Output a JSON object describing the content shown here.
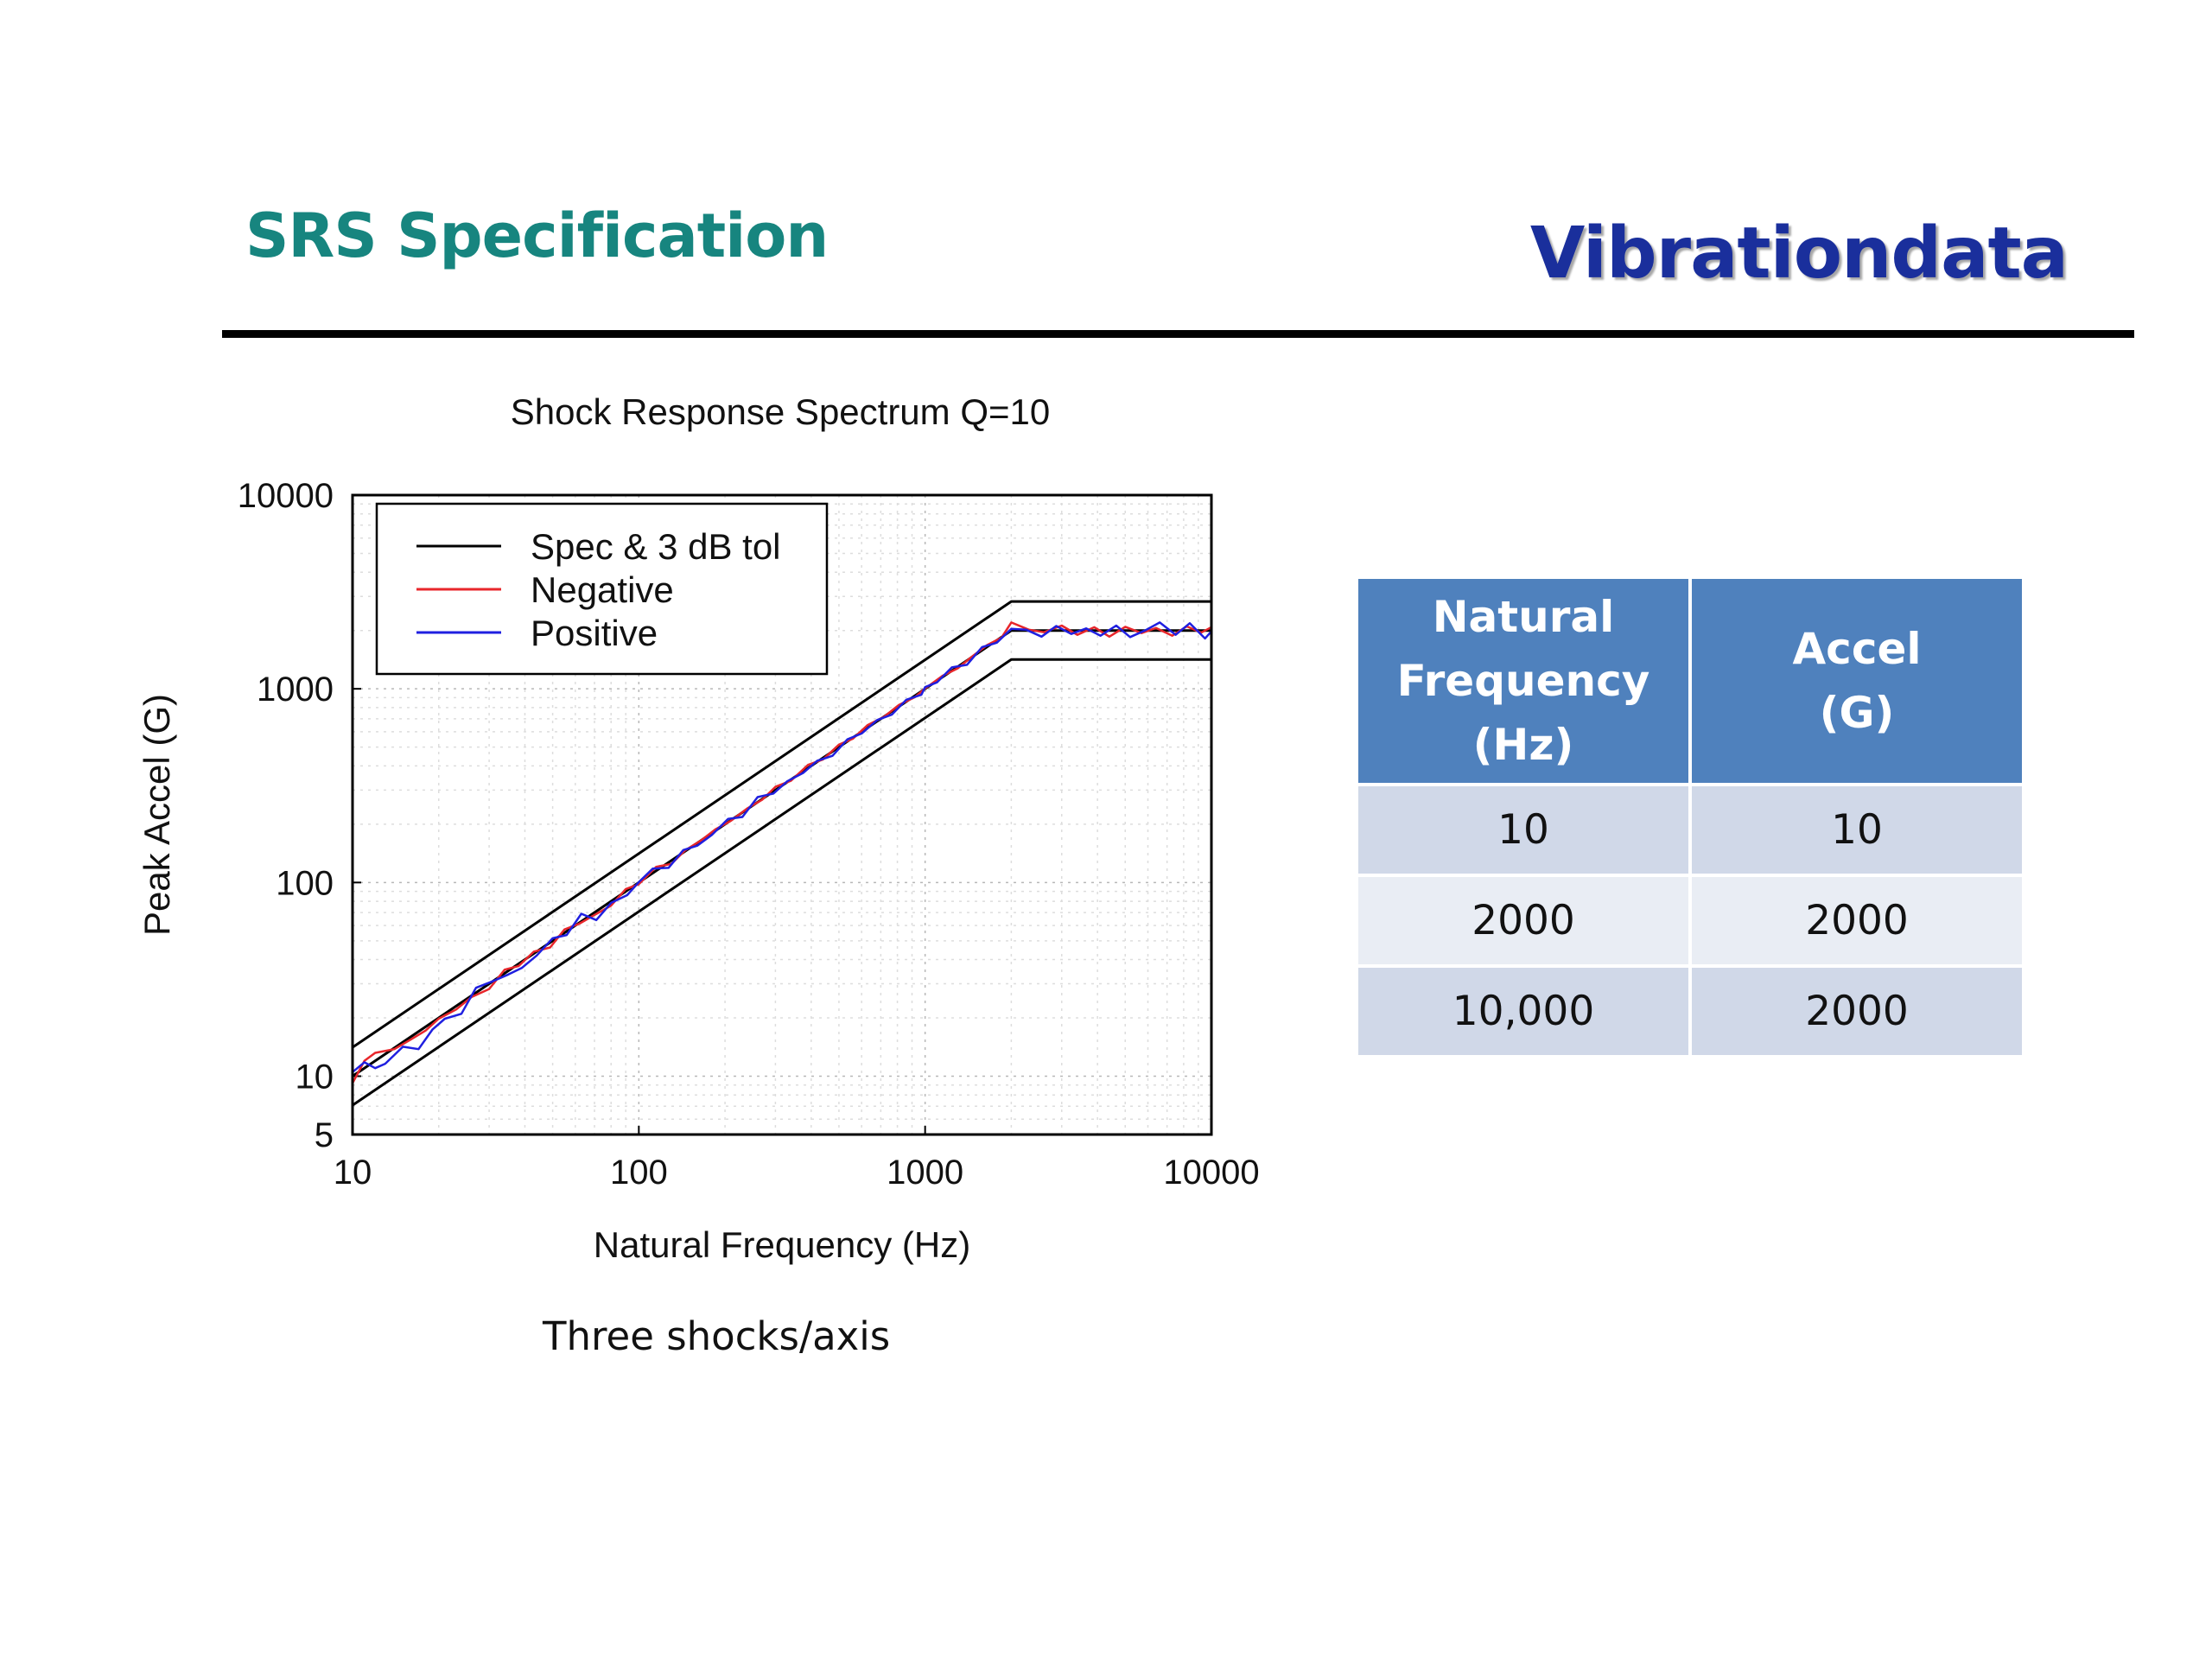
{
  "slide": {
    "title": "SRS Specification",
    "brand": "Vibrationdata",
    "caption": "Three shocks/axis"
  },
  "table": {
    "headers": [
      [
        "Natural",
        "Frequency",
        "(Hz)"
      ],
      [
        "Accel",
        "(G)"
      ]
    ],
    "rows": [
      [
        "10",
        "10"
      ],
      [
        "2000",
        "2000"
      ],
      [
        "10,000",
        "2000"
      ]
    ]
  },
  "chart_data": {
    "type": "line",
    "title": "Shock Response Spectrum Q=10",
    "xlabel": "Natural Frequency (Hz)",
    "ylabel": "Peak Accel (G)",
    "xscale": "log",
    "yscale": "log",
    "xlim": [
      10,
      10000
    ],
    "ylim": [
      5,
      10000
    ],
    "xticks": [
      10,
      100,
      1000,
      10000
    ],
    "xtick_labels": [
      "10",
      "100",
      "1000",
      "10000"
    ],
    "yticks": [
      5,
      10,
      100,
      1000,
      10000
    ],
    "ytick_labels": [
      "5",
      "10",
      "100",
      "1000",
      "10000"
    ],
    "grid": true,
    "legend": "top-left",
    "colors": {
      "spec": "#000000",
      "negative": "#e8262b",
      "positive": "#1f1fe0"
    },
    "series": [
      {
        "name": "Spec & 3 dB tol",
        "key": "spec",
        "x": [
          10,
          2000,
          10000
        ],
        "y": [
          10,
          2000,
          2000
        ]
      },
      {
        "key": "spec",
        "x": [
          10,
          2000,
          10000
        ],
        "y": [
          14.1,
          2825,
          2825
        ]
      },
      {
        "key": "spec",
        "x": [
          10,
          2000,
          10000
        ],
        "y": [
          7.08,
          1416,
          1416
        ]
      },
      {
        "name": "Negative",
        "key": "negative",
        "x": [
          10,
          11,
          12,
          14,
          16,
          18,
          20,
          23,
          26,
          30,
          34,
          38,
          43,
          49,
          55,
          62,
          70,
          80,
          90,
          100,
          115,
          130,
          145,
          165,
          185,
          210,
          240,
          270,
          300,
          340,
          390,
          440,
          500,
          560,
          630,
          720,
          810,
          920,
          1000,
          1150,
          1300,
          1450,
          1650,
          1850,
          2000,
          2300,
          2600,
          3000,
          3400,
          3900,
          4400,
          5000,
          5700,
          6400,
          7300,
          8200,
          9200,
          10000
        ],
        "y": [
          9.2,
          12.0,
          13.2,
          13.8,
          15.5,
          17.2,
          19.8,
          22.1,
          25.6,
          28.2,
          35.5,
          37.0,
          44.0,
          46.2,
          57.2,
          61.3,
          68.0,
          76.0,
          92.5,
          98.0,
          120.5,
          124.8,
          146.5,
          165.0,
          188.0,
          208.5,
          242.0,
          268.0,
          312.0,
          335.0,
          405.0,
          432.0,
          515.0,
          553.0,
          650.0,
          718.0,
          825.0,
          905.0,
          1005.0,
          1168.0,
          1275.0,
          1458.0,
          1685.0,
          1840.0,
          2200.0,
          2020.0,
          1960.0,
          2120.0,
          1900.0,
          2080.0,
          1860.0,
          2090.0,
          1940.0,
          2060.0,
          1880.0,
          2100.0,
          1950.0,
          2080.0
        ]
      },
      {
        "name": "Positive",
        "key": "positive",
        "x": [
          10,
          11,
          12,
          13,
          15,
          17,
          19,
          21,
          24,
          27,
          31,
          35,
          39,
          44,
          50,
          56,
          63,
          71,
          80,
          91,
          100,
          112,
          127,
          143,
          160,
          180,
          205,
          230,
          260,
          295,
          330,
          375,
          420,
          475,
          535,
          600,
          680,
          765,
          860,
          970,
          1000,
          1100,
          1240,
          1400,
          1580,
          1780,
          2000,
          2250,
          2550,
          2870,
          3240,
          3650,
          4100,
          4650,
          5200,
          5900,
          6600,
          7500,
          8400,
          9500,
          10000
        ],
        "y": [
          10.5,
          11.8,
          11.0,
          11.6,
          14.2,
          13.8,
          17.4,
          19.8,
          21.0,
          28.6,
          31.0,
          33.5,
          36.2,
          42.0,
          51.5,
          53.6,
          69.0,
          64.0,
          78.5,
          86.0,
          100.5,
          118.0,
          119.0,
          147.0,
          155.0,
          176.0,
          213.0,
          218.0,
          276.0,
          288.0,
          333.0,
          368.0,
          425.0,
          451.0,
          548.0,
          588.0,
          690.0,
          735.0,
          878.0,
          931.0,
          1020.0,
          1080.0,
          1290.0,
          1330.0,
          1640.0,
          1730.0,
          2040.0,
          2020.0,
          1860.0,
          2110.0,
          1920.0,
          2050.0,
          1880.0,
          2120.0,
          1850.0,
          2010.0,
          2200.0,
          1900.0,
          2180.0,
          1820.0,
          1980.0
        ]
      }
    ]
  }
}
